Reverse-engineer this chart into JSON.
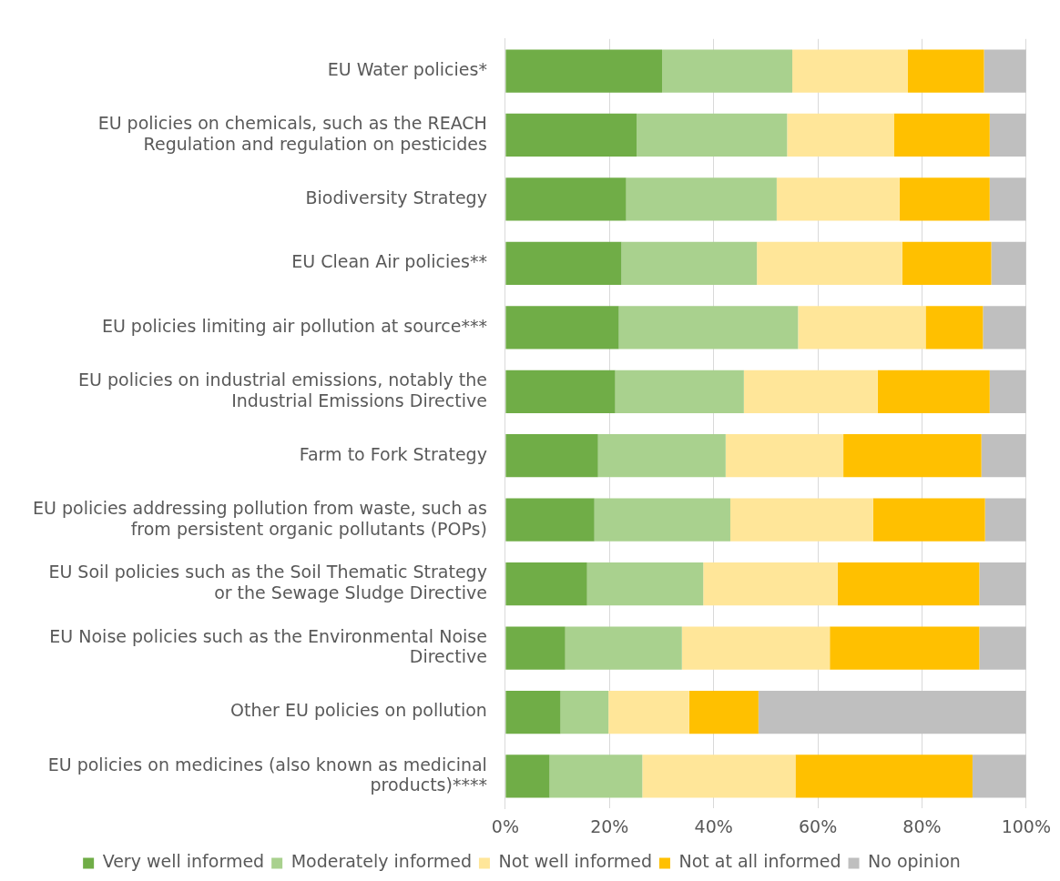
{
  "chart_data": {
    "type": "bar",
    "orientation": "horizontal",
    "stacked": true,
    "grid": "x",
    "legend": "bottom",
    "categories": [
      "EU Water policies*",
      "EU policies on chemicals, such as the REACH Regulation and regulation on pesticides",
      "Biodiversity Strategy",
      "EU Clean Air policies**",
      "EU policies limiting air pollution at source***",
      "EU policies on industrial emissions, notably the Industrial Emissions Directive",
      "Farm to Fork Strategy",
      "EU policies addressing pollution from waste, such as from persistent organic pollutants (POPs)",
      "EU Soil policies such as the Soil Thematic Strategy or the Sewage Sludge Directive",
      "EU Noise policies such as the Environmental Noise Directive",
      "Other EU policies on pollution",
      "EU policies on medicines (also known as medicinal products)****"
    ],
    "series": [
      {
        "name": "Very well informed",
        "color": "#70ad47",
        "values": [
          30.1,
          25.2,
          23.2,
          22.3,
          21.8,
          21.1,
          17.8,
          17.1,
          15.7,
          11.5,
          10.6,
          8.5
        ]
      },
      {
        "name": "Moderately informed",
        "color": "#a9d18e",
        "values": [
          25.0,
          28.9,
          28.9,
          26.0,
          34.4,
          24.7,
          24.5,
          26.1,
          22.3,
          22.4,
          9.2,
          17.8
        ]
      },
      {
        "name": "Not well informed",
        "color": "#ffe699",
        "values": [
          22.2,
          20.5,
          23.6,
          27.9,
          24.5,
          25.7,
          22.6,
          27.4,
          25.8,
          28.4,
          15.5,
          29.4
        ]
      },
      {
        "name": "Not at all informed",
        "color": "#ffc000",
        "values": [
          14.6,
          18.4,
          17.3,
          17.1,
          11.0,
          21.5,
          26.5,
          21.5,
          27.2,
          28.7,
          13.3,
          34.0
        ]
      },
      {
        "name": "No opinion",
        "color": "#bfbfbf",
        "values": [
          8.1,
          7.0,
          7.0,
          6.7,
          8.3,
          7.0,
          8.6,
          7.9,
          9.0,
          9.0,
          51.4,
          10.3
        ]
      }
    ],
    "xlim": [
      0,
      100
    ],
    "xticks": [
      {
        "value": 0,
        "label": "0%"
      },
      {
        "value": 20,
        "label": "20%"
      },
      {
        "value": 40,
        "label": "40%"
      },
      {
        "value": 60,
        "label": "60%"
      },
      {
        "value": 80,
        "label": "80%"
      },
      {
        "value": 100,
        "label": "100%"
      }
    ]
  }
}
